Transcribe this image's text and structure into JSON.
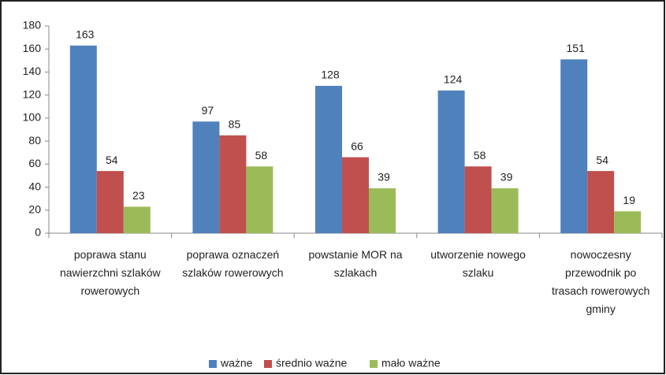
{
  "chart_data": {
    "type": "bar",
    "categories": [
      "poprawa stanu nawierzchni szlaków rowerowych",
      "poprawa oznaczeń szlaków rowerowych",
      "powstanie MOR na szlakach",
      "utworzenie nowego szlaku",
      "nowoczesny przewodnik po trasach rowerowych gminy"
    ],
    "series": [
      {
        "name": "ważne",
        "color": "#4f81bd",
        "values": [
          163,
          97,
          128,
          124,
          151
        ]
      },
      {
        "name": "średnio ważne",
        "color": "#c0504d",
        "values": [
          54,
          85,
          66,
          58,
          54
        ]
      },
      {
        "name": "mało ważne",
        "color": "#9bbb59",
        "values": [
          23,
          58,
          39,
          39,
          19
        ]
      }
    ],
    "ylim": [
      0,
      180
    ],
    "yticks": [
      0,
      20,
      40,
      60,
      80,
      100,
      120,
      140,
      160,
      180
    ],
    "grid": false,
    "legend": "bottom"
  }
}
